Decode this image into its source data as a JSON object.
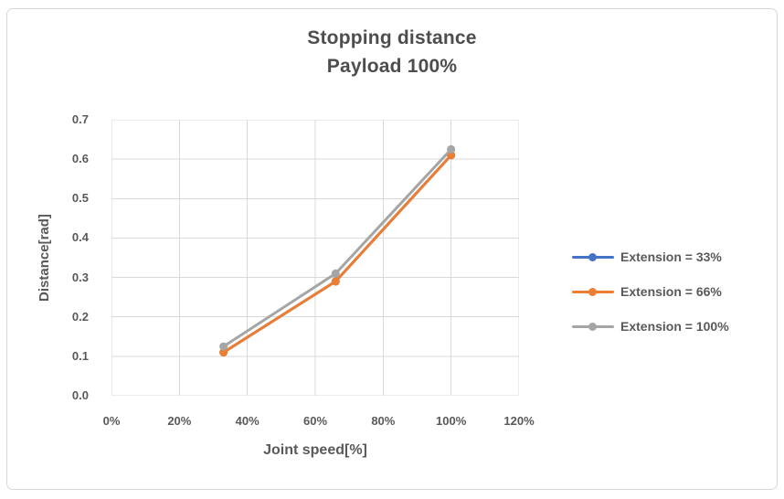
{
  "chart_data": {
    "type": "line",
    "title": "Stopping distance",
    "subtitle": "Payload 100%",
    "xlabel": "Joint speed[%]",
    "ylabel": "Distance[rad]",
    "x": [
      33,
      66,
      100
    ],
    "series": [
      {
        "name": "Extension = 33%",
        "color": "#4472C4",
        "values": [
          0.11,
          0.29,
          0.61
        ]
      },
      {
        "name": "Extension = 66%",
        "color": "#ED7D31",
        "values": [
          0.11,
          0.29,
          0.61
        ]
      },
      {
        "name": "Extension = 100%",
        "color": "#A5A5A5",
        "values": [
          0.125,
          0.31,
          0.625
        ]
      }
    ],
    "xlim": [
      0,
      120
    ],
    "ylim": [
      0,
      0.7
    ],
    "xticks": [
      "0%",
      "20%",
      "40%",
      "60%",
      "80%",
      "100%",
      "120%"
    ],
    "yticks": [
      "0.0",
      "0.1",
      "0.2",
      "0.3",
      "0.4",
      "0.5",
      "0.6",
      "0.7"
    ],
    "grid": true,
    "gridline_color": "#d9d9d9",
    "legend_position": "right",
    "marker": "circle"
  }
}
